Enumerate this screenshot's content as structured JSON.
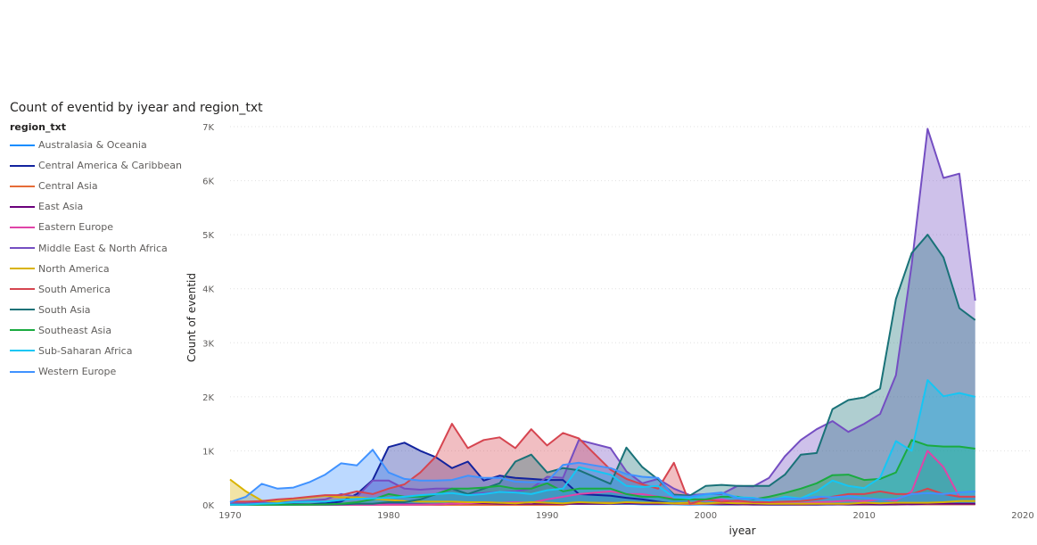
{
  "title": "Count of eventid by iyear and region_txt",
  "legend": {
    "title": "region_txt",
    "items": [
      {
        "label": "Australasia & Oceania",
        "color": "#118DFF"
      },
      {
        "label": "Central America & Caribbean",
        "color": "#12239E"
      },
      {
        "label": "Central Asia",
        "color": "#E66C37"
      },
      {
        "label": "East Asia",
        "color": "#6B007B"
      },
      {
        "label": "Eastern Europe",
        "color": "#E044A7"
      },
      {
        "label": "Middle East & North Africa",
        "color": "#744EC2"
      },
      {
        "label": "North America",
        "color": "#D9B300"
      },
      {
        "label": "South America",
        "color": "#D64550"
      },
      {
        "label": "South Asia",
        "color": "#197278"
      },
      {
        "label": "Southeast Asia",
        "color": "#1AAB40"
      },
      {
        "label": "Sub-Saharan Africa",
        "color": "#15C6F4"
      },
      {
        "label": "Western Europe",
        "color": "#4092FF"
      }
    ]
  },
  "chart_data": {
    "type": "area",
    "title": "Count of eventid by iyear and region_txt",
    "xlabel": "iyear",
    "ylabel": "Count of eventid",
    "xlim": [
      1970,
      2020
    ],
    "ylim": [
      0,
      7000
    ],
    "x_ticks": [
      "1970",
      "1980",
      "1990",
      "2000",
      "2010",
      "2020"
    ],
    "y_ticks": [
      "0K",
      "1K",
      "2K",
      "3K",
      "4K",
      "5K",
      "6K",
      "7K"
    ],
    "grid": "horizontal dotted",
    "legend_position": "left",
    "x": [
      1970,
      1971,
      1972,
      1973,
      1974,
      1975,
      1976,
      1977,
      1978,
      1979,
      1980,
      1981,
      1982,
      1983,
      1984,
      1985,
      1986,
      1987,
      1988,
      1989,
      1990,
      1991,
      1992,
      1994,
      1995,
      1996,
      1997,
      1998,
      1999,
      2000,
      2001,
      2002,
      2003,
      2004,
      2005,
      2006,
      2007,
      2008,
      2009,
      2010,
      2011,
      2012,
      2013,
      2014,
      2015,
      2016,
      2017
    ],
    "series": [
      {
        "name": "Australasia & Oceania",
        "values": [
          1,
          1,
          8,
          1,
          1,
          3,
          0,
          4,
          5,
          4,
          20,
          15,
          10,
          10,
          20,
          10,
          15,
          15,
          10,
          10,
          30,
          40,
          30,
          20,
          20,
          10,
          10,
          10,
          5,
          10,
          5,
          5,
          10,
          5,
          5,
          5,
          5,
          5,
          10,
          10,
          10,
          15,
          20,
          20,
          15,
          20,
          20
        ]
      },
      {
        "name": "Central America & Caribbean",
        "values": [
          7,
          5,
          3,
          6,
          11,
          10,
          30,
          60,
          200,
          460,
          1070,
          1150,
          1000,
          880,
          680,
          800,
          450,
          540,
          500,
          480,
          460,
          460,
          200,
          170,
          130,
          100,
          60,
          20,
          20,
          15,
          10,
          10,
          5,
          5,
          5,
          5,
          5,
          10,
          5,
          5,
          5,
          5,
          10,
          10,
          10,
          10,
          10
        ]
      },
      {
        "name": "Central Asia",
        "values": [
          0,
          0,
          0,
          0,
          0,
          0,
          0,
          0,
          0,
          0,
          0,
          0,
          0,
          0,
          0,
          0,
          0,
          0,
          0,
          0,
          0,
          0,
          40,
          40,
          30,
          30,
          20,
          20,
          15,
          20,
          15,
          10,
          10,
          10,
          10,
          5,
          10,
          10,
          10,
          10,
          10,
          10,
          10,
          10,
          10,
          10,
          10
        ]
      },
      {
        "name": "East Asia",
        "values": [
          2,
          1,
          1,
          1,
          2,
          3,
          2,
          2,
          5,
          5,
          10,
          10,
          10,
          10,
          20,
          30,
          30,
          20,
          20,
          20,
          20,
          20,
          20,
          20,
          30,
          20,
          20,
          30,
          40,
          30,
          20,
          10,
          10,
          10,
          10,
          10,
          10,
          10,
          10,
          20,
          10,
          20,
          10,
          20,
          20,
          20,
          20
        ]
      },
      {
        "name": "Eastern Europe",
        "values": [
          12,
          2,
          1,
          1,
          2,
          2,
          2,
          2,
          2,
          2,
          5,
          5,
          5,
          10,
          20,
          30,
          50,
          40,
          50,
          40,
          100,
          150,
          200,
          250,
          200,
          200,
          150,
          130,
          120,
          80,
          100,
          50,
          40,
          40,
          30,
          30,
          50,
          60,
          80,
          70,
          100,
          80,
          250,
          1000,
          700,
          150,
          150
        ]
      },
      {
        "name": "Middle East & North Africa",
        "values": [
          30,
          30,
          40,
          40,
          60,
          80,
          100,
          200,
          150,
          450,
          450,
          300,
          280,
          300,
          300,
          200,
          220,
          240,
          250,
          300,
          520,
          500,
          1200,
          1050,
          620,
          400,
          480,
          300,
          180,
          200,
          200,
          350,
          340,
          500,
          900,
          1200,
          1400,
          1550,
          1350,
          1500,
          1680,
          2400,
          4450,
          6960,
          6050,
          6130,
          3780
        ]
      },
      {
        "name": "North America",
        "values": [
          470,
          250,
          80,
          60,
          110,
          140,
          170,
          140,
          140,
          110,
          90,
          70,
          60,
          60,
          60,
          50,
          50,
          40,
          30,
          50,
          40,
          30,
          50,
          30,
          50,
          40,
          40,
          30,
          40,
          30,
          40,
          30,
          30,
          20,
          20,
          20,
          20,
          20,
          20,
          40,
          30,
          40,
          40,
          40,
          50,
          70,
          70
        ]
      },
      {
        "name": "South America",
        "values": [
          60,
          60,
          70,
          100,
          120,
          150,
          180,
          180,
          250,
          200,
          300,
          380,
          600,
          900,
          1500,
          1050,
          1200,
          1250,
          1050,
          1400,
          1100,
          1330,
          1230,
          650,
          480,
          380,
          300,
          780,
          20,
          100,
          60,
          80,
          50,
          50,
          60,
          70,
          100,
          150,
          200,
          200,
          250,
          200,
          200,
          300,
          200,
          150,
          150
        ]
      },
      {
        "name": "South Asia",
        "values": [
          0,
          1,
          1,
          1,
          1,
          5,
          5,
          10,
          20,
          20,
          50,
          50,
          100,
          200,
          300,
          200,
          300,
          400,
          800,
          930,
          600,
          680,
          640,
          390,
          1060,
          700,
          470,
          190,
          170,
          350,
          370,
          350,
          350,
          350,
          560,
          930,
          960,
          1770,
          1940,
          1990,
          2150,
          3810,
          4660,
          5000,
          4580,
          3640,
          3420
        ]
      },
      {
        "name": "Southeast Asia",
        "values": [
          5,
          2,
          1,
          4,
          5,
          5,
          10,
          20,
          50,
          100,
          200,
          150,
          150,
          200,
          300,
          300,
          320,
          350,
          300,
          300,
          400,
          250,
          300,
          300,
          200,
          150,
          150,
          100,
          100,
          100,
          150,
          150,
          100,
          150,
          220,
          300,
          400,
          550,
          560,
          460,
          480,
          600,
          1200,
          1100,
          1080,
          1080,
          1040
        ]
      },
      {
        "name": "Sub-Saharan Africa",
        "values": [
          4,
          6,
          20,
          30,
          50,
          60,
          60,
          90,
          110,
          120,
          130,
          150,
          180,
          200,
          220,
          180,
          200,
          240,
          230,
          200,
          270,
          300,
          700,
          560,
          350,
          330,
          350,
          140,
          120,
          190,
          220,
          140,
          130,
          80,
          150,
          120,
          250,
          450,
          350,
          310,
          500,
          1180,
          1000,
          2310,
          2010,
          2070,
          2000
        ]
      },
      {
        "name": "Western Europe",
        "values": [
          50,
          150,
          390,
          300,
          320,
          420,
          560,
          770,
          730,
          1020,
          600,
          480,
          450,
          450,
          460,
          540,
          500,
          500,
          430,
          420,
          430,
          740,
          780,
          680,
          570,
          520,
          500,
          160,
          150,
          200,
          230,
          120,
          110,
          100,
          120,
          110,
          150,
          140,
          160,
          130,
          100,
          110,
          200,
          220,
          200,
          230,
          250
        ]
      }
    ]
  }
}
